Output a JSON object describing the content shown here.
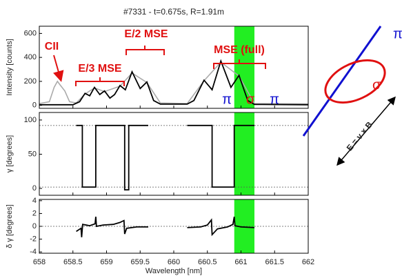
{
  "chart_data": {
    "type": "line",
    "title": "#7331 - t=0.675s, R=1.91m",
    "xlabel": "Wavelength [nm]",
    "xlim": [
      658,
      662
    ],
    "xticks": [
      658,
      658.5,
      659,
      659.5,
      660,
      660.5,
      661,
      661.5,
      662
    ],
    "highlight_x": [
      660.9,
      661.2
    ],
    "highlight_color": "#22ee22",
    "panels": [
      {
        "ylabel": "Intensity [counts]",
        "ylim": [
          -25,
          660
        ],
        "yticks": [
          0,
          200,
          400,
          600
        ],
        "series": [
          {
            "color": "#aaaaaa",
            "x": [
              658,
              658.15,
              658.22,
              658.27,
              658.31,
              658.38,
              658.45,
              658.55,
              658.68,
              658.82,
              658.97,
              659.2,
              659.38,
              659.6,
              659.8,
              660.2,
              660.45,
              660.7,
              660.97,
              661.2,
              662
            ],
            "values": [
              15,
              30,
              150,
              200,
              170,
              120,
              30,
              20,
              95,
              145,
              115,
              160,
              270,
              190,
              20,
              15,
              205,
              360,
              245,
              15,
              12
            ]
          },
          {
            "color": "#000000",
            "x": [
              658,
              658.5,
              658.6,
              658.68,
              658.75,
              658.82,
              658.9,
              658.97,
              659.05,
              659.12,
              659.2,
              659.28,
              659.38,
              659.5,
              659.6,
              659.7,
              659.8,
              660.2,
              660.3,
              660.45,
              660.57,
              660.7,
              660.85,
              660.97,
              661.1,
              661.2,
              662
            ],
            "values": [
              5,
              5,
              30,
              100,
              80,
              150,
              90,
              120,
              60,
              90,
              165,
              130,
              280,
              140,
              195,
              40,
              10,
              10,
              40,
              210,
              130,
              370,
              150,
              250,
              40,
              8,
              5
            ]
          }
        ],
        "annotations": [
          "CII",
          "E/3 MSE",
          "E/2 MSE",
          "MSE (full)",
          "π",
          "σ",
          "π"
        ]
      },
      {
        "ylabel": "γ [degrees]",
        "ylim": [
          -10,
          111
        ],
        "yticks": [
          0,
          50,
          100
        ],
        "reference_lines": [
          92,
          2
        ],
        "series": [
          {
            "color": "#000000",
            "x": [
              658.55,
              658.64,
              658.64,
              658.84,
              658.84,
              659.27,
              659.27,
              659.33,
              659.33,
              659.62,
              659.9,
              660.2,
              660.57,
              660.57,
              660.9,
              660.9,
              661.2
            ],
            "values": [
              92,
              92,
              2,
              2,
              92,
              92,
              -2,
              -2,
              92,
              92,
              null,
              92,
              92,
              2,
              2,
              92,
              92
            ]
          }
        ]
      },
      {
        "ylabel": "δ γ [degrees]",
        "ylim": [
          -4.2,
          4.2
        ],
        "yticks": [
          -4,
          -2,
          0,
          2,
          4
        ],
        "reference_lines": [
          0
        ],
        "series": [
          {
            "color": "#000000",
            "x": [
              658.55,
              658.62,
              658.63,
              658.645,
              658.75,
              658.83,
              658.84,
              658.85,
              658.95,
              659.1,
              659.2,
              659.26,
              659.27,
              659.3,
              659.45,
              659.62,
              659.9,
              660.2,
              660.4,
              660.5,
              660.56,
              660.57,
              660.65,
              660.8,
              660.88,
              660.9,
              660.91,
              661.0,
              661.2
            ],
            "values": [
              -0.8,
              -0.3,
              -1.7,
              0.3,
              0.1,
              0.4,
              1.5,
              0,
              0.2,
              0.3,
              0.6,
              0.9,
              -1.2,
              -0.3,
              -0.1,
              -0.1,
              null,
              -0.2,
              -0.1,
              0.2,
              1.0,
              -1.3,
              -0.4,
              -0.1,
              0.3,
              1.5,
              0.1,
              -0.1,
              -0.2
            ]
          }
        ]
      }
    ],
    "diagram": {
      "pi": "π",
      "sigma": "σ",
      "field": "E = v × B"
    }
  }
}
